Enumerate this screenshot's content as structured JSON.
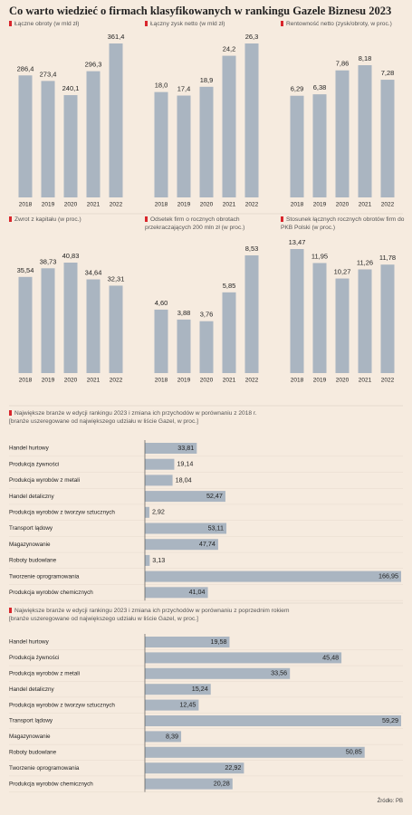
{
  "title": "Co warto wiedzieć o firmach klasyfikowanych w rankingu Gazele Biznesu 2023",
  "source": "Źródło: PB",
  "chart_data": [
    {
      "type": "bar",
      "title": "Łączne obroty (w mld zł)",
      "categories": [
        "2018",
        "2019",
        "2020",
        "2021",
        "2022"
      ],
      "values": [
        286.4,
        273.4,
        240.1,
        296.3,
        361.4
      ],
      "value_labels": [
        "286,4",
        "273,4",
        "240,1",
        "296,3",
        "361,4"
      ],
      "color": "#aab5c1"
    },
    {
      "type": "bar",
      "title": "Łączny zysk netto (w mld zł)",
      "categories": [
        "2018",
        "2019",
        "2020",
        "2021",
        "2022"
      ],
      "values": [
        18.0,
        17.4,
        18.9,
        24.2,
        26.3
      ],
      "value_labels": [
        "18,0",
        "17,4",
        "18,9",
        "24,2",
        "26,3"
      ],
      "color": "#aab5c1"
    },
    {
      "type": "bar",
      "title": "Rentowność netto (zysk/obroty, w proc.)",
      "categories": [
        "2018",
        "2019",
        "2020",
        "2021",
        "2022"
      ],
      "values": [
        6.29,
        6.38,
        7.86,
        8.18,
        7.28
      ],
      "value_labels": [
        "6,29",
        "6,38",
        "7,86",
        "8,18",
        "7,28"
      ],
      "color": "#aab5c1"
    },
    {
      "type": "bar",
      "title": "Zwrot z kapitału (w proc.)",
      "categories": [
        "2018",
        "2019",
        "2020",
        "2021",
        "2022"
      ],
      "values": [
        35.54,
        38.73,
        40.83,
        34.64,
        32.31
      ],
      "value_labels": [
        "35,54",
        "38,73",
        "40,83",
        "34,64",
        "32,31"
      ],
      "color": "#aab5c1"
    },
    {
      "type": "bar",
      "title": "Odsetek firm o rocznych obrotach przekraczających 200 mln zł (w proc.)",
      "categories": [
        "2018",
        "2019",
        "2020",
        "2021",
        "2022"
      ],
      "values": [
        4.6,
        3.88,
        3.76,
        5.85,
        8.53
      ],
      "value_labels": [
        "4,60",
        "3,88",
        "3,76",
        "5,85",
        "8,53"
      ],
      "color": "#aab5c1"
    },
    {
      "type": "bar",
      "title": "Stosunek łącznych rocznych obrotów firm do PKB Polski (w proc.)",
      "categories": [
        "2018",
        "2019",
        "2020",
        "2021",
        "2022"
      ],
      "values": [
        13.47,
        11.95,
        10.27,
        11.26,
        11.78
      ],
      "value_labels": [
        "13,47",
        "11,95",
        "10,27",
        "11,26",
        "11,78"
      ],
      "color": "#aab5c1"
    },
    {
      "type": "barh",
      "title": "Największe branże w edycji rankingu 2023 i zmiana ich przychodów w porównaniu z 2018 r.",
      "subtitle": "[branże uszeregowane od największego udziału w liście Gazel, w proc.]",
      "categories": [
        "Handel hurtowy",
        "Produkcja żywności",
        "Produkcja wyrobów z metali",
        "Handel detaliczny",
        "Produkcja wyrobów z tworzyw sztucznych",
        "Transport lądowy",
        "Magazynowanie",
        "Roboty budowlane",
        "Tworzenie oprogramowania",
        "Produkcja wyrobów chemicznych"
      ],
      "values": [
        33.81,
        19.14,
        18.04,
        52.47,
        2.92,
        53.11,
        47.74,
        3.13,
        166.95,
        41.04
      ],
      "value_labels": [
        "33,81",
        "19,14",
        "18,04",
        "52,47",
        "2,92",
        "53,11",
        "47,74",
        "3,13",
        "166,95",
        "41,04"
      ],
      "color": "#aab5c1"
    },
    {
      "type": "barh",
      "title": "Największe branże w edycji rankingu 2023 i zmiana ich przychodów w porównaniu z poprzednim rokiem",
      "subtitle": "[branże uszeregowane od największego udziału w liście Gazel, w proc.]",
      "categories": [
        "Handel hurtowy",
        "Produkcja żywności",
        "Produkcja wyrobów z metali",
        "Handel detaliczny",
        "Produkcja wyrobów z tworzyw sztucznych",
        "Transport lądowy",
        "Magazynowanie",
        "Roboty budowlane",
        "Tworzenie oprogramowania",
        "Produkcja wyrobów chemicznych"
      ],
      "values": [
        19.58,
        45.48,
        33.56,
        15.24,
        12.45,
        59.29,
        8.39,
        50.85,
        22.92,
        20.28
      ],
      "value_labels": [
        "19,58",
        "45,48",
        "33,56",
        "15,24",
        "12,45",
        "59,29",
        "8,39",
        "50,85",
        "22,92",
        "20,28"
      ],
      "color": "#aab5c1"
    }
  ]
}
